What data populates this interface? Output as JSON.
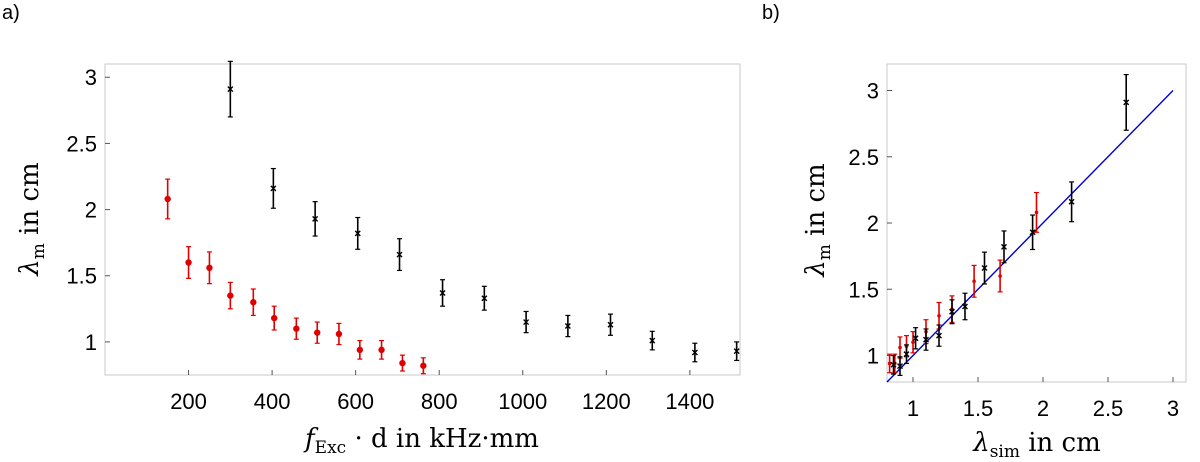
{
  "chart_data": [
    {
      "panel": "a)",
      "type": "scatter",
      "title": "",
      "xlabel": {
        "var": "f",
        "sub": "Exc",
        "rest": " · d in kHz·mm"
      },
      "ylabel": {
        "var": "λ",
        "sub": "m",
        "rest": " in cm"
      },
      "xlim": [
        0,
        1520
      ],
      "ylim": [
        0.75,
        3.1
      ],
      "xticks": [
        200,
        400,
        600,
        800,
        1000,
        1200,
        1400
      ],
      "xticklabels": [
        "200",
        "400",
        "600",
        "800",
        "1000",
        "1200",
        "1400"
      ],
      "yticks": [
        1,
        1.5,
        2,
        2.5,
        3
      ],
      "yticklabels": [
        "1",
        "1.5",
        "2",
        "2.5",
        "3"
      ],
      "grid": false,
      "series": [
        {
          "name": "red",
          "color": "#e00000",
          "marker": "dot",
          "points": [
            {
              "x": 150,
              "y": 2.08,
              "err": 0.15
            },
            {
              "x": 200,
              "y": 1.6,
              "err": 0.12
            },
            {
              "x": 250,
              "y": 1.56,
              "err": 0.12
            },
            {
              "x": 300,
              "y": 1.35,
              "err": 0.1
            },
            {
              "x": 355,
              "y": 1.3,
              "err": 0.1
            },
            {
              "x": 405,
              "y": 1.18,
              "err": 0.09
            },
            {
              "x": 458,
              "y": 1.1,
              "err": 0.08
            },
            {
              "x": 508,
              "y": 1.07,
              "err": 0.08
            },
            {
              "x": 560,
              "y": 1.06,
              "err": 0.08
            },
            {
              "x": 610,
              "y": 0.94,
              "err": 0.07
            },
            {
              "x": 662,
              "y": 0.94,
              "err": 0.07
            },
            {
              "x": 712,
              "y": 0.84,
              "err": 0.06
            },
            {
              "x": 762,
              "y": 0.82,
              "err": 0.06
            }
          ]
        },
        {
          "name": "black",
          "color": "#000000",
          "marker": "cross",
          "points": [
            {
              "x": 300,
              "y": 2.91,
              "err": 0.21
            },
            {
              "x": 403,
              "y": 2.16,
              "err": 0.15
            },
            {
              "x": 503,
              "y": 1.93,
              "err": 0.13
            },
            {
              "x": 605,
              "y": 1.82,
              "err": 0.12
            },
            {
              "x": 705,
              "y": 1.66,
              "err": 0.12
            },
            {
              "x": 808,
              "y": 1.37,
              "err": 0.1
            },
            {
              "x": 908,
              "y": 1.33,
              "err": 0.09
            },
            {
              "x": 1008,
              "y": 1.15,
              "err": 0.08
            },
            {
              "x": 1108,
              "y": 1.12,
              "err": 0.08
            },
            {
              "x": 1210,
              "y": 1.13,
              "err": 0.08
            },
            {
              "x": 1310,
              "y": 1.01,
              "err": 0.07
            },
            {
              "x": 1412,
              "y": 0.92,
              "err": 0.07
            },
            {
              "x": 1512,
              "y": 0.93,
              "err": 0.07
            }
          ]
        }
      ]
    },
    {
      "panel": "b)",
      "type": "scatter",
      "title": "",
      "xlabel": {
        "var": "λ",
        "sub": "sim",
        "rest": " in cm"
      },
      "ylabel": {
        "var": "λ",
        "sub": "m",
        "rest": " in cm"
      },
      "xlim": [
        0.8,
        3.1
      ],
      "ylim": [
        0.8,
        3.2
      ],
      "xticks": [
        1,
        1.5,
        2,
        2.5,
        3
      ],
      "xticklabels": [
        "1",
        "1.5",
        "2",
        "2.5",
        "3"
      ],
      "yticks": [
        1,
        1.5,
        2,
        2.5,
        3
      ],
      "yticklabels": [
        "1",
        "1.5",
        "2",
        "2.5",
        "3"
      ],
      "grid": false,
      "reference_line": {
        "color": "#0000cc",
        "from": [
          0.8,
          0.8
        ],
        "to": [
          3.0,
          3.0
        ]
      },
      "series": [
        {
          "name": "red",
          "color": "#e00000",
          "marker": "dot",
          "points": [
            {
              "x": 0.82,
              "y": 0.94,
              "err": 0.07
            },
            {
              "x": 0.86,
              "y": 0.94,
              "err": 0.07
            },
            {
              "x": 0.9,
              "y": 1.06,
              "err": 0.08
            },
            {
              "x": 0.95,
              "y": 1.07,
              "err": 0.08
            },
            {
              "x": 1.0,
              "y": 1.1,
              "err": 0.08
            },
            {
              "x": 1.1,
              "y": 1.18,
              "err": 0.09
            },
            {
              "x": 1.2,
              "y": 1.3,
              "err": 0.1
            },
            {
              "x": 1.3,
              "y": 1.35,
              "err": 0.1
            },
            {
              "x": 1.47,
              "y": 1.56,
              "err": 0.12
            },
            {
              "x": 1.67,
              "y": 1.6,
              "err": 0.12
            },
            {
              "x": 1.95,
              "y": 2.08,
              "err": 0.15
            }
          ]
        },
        {
          "name": "black",
          "color": "#000000",
          "marker": "cross",
          "points": [
            {
              "x": 0.85,
              "y": 0.93,
              "err": 0.07
            },
            {
              "x": 0.9,
              "y": 0.92,
              "err": 0.07
            },
            {
              "x": 0.95,
              "y": 1.01,
              "err": 0.07
            },
            {
              "x": 1.02,
              "y": 1.13,
              "err": 0.08
            },
            {
              "x": 1.1,
              "y": 1.12,
              "err": 0.08
            },
            {
              "x": 1.2,
              "y": 1.15,
              "err": 0.08
            },
            {
              "x": 1.3,
              "y": 1.33,
              "err": 0.09
            },
            {
              "x": 1.4,
              "y": 1.37,
              "err": 0.1
            },
            {
              "x": 1.55,
              "y": 1.66,
              "err": 0.12
            },
            {
              "x": 1.7,
              "y": 1.82,
              "err": 0.12
            },
            {
              "x": 1.92,
              "y": 1.93,
              "err": 0.13
            },
            {
              "x": 2.22,
              "y": 2.16,
              "err": 0.15
            },
            {
              "x": 2.64,
              "y": 2.91,
              "err": 0.21
            }
          ]
        }
      ]
    }
  ]
}
